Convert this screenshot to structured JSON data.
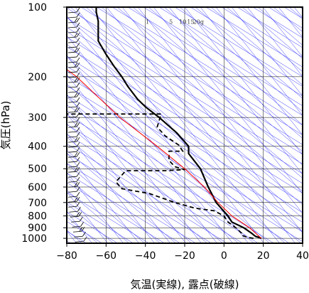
{
  "chart_data": {
    "type": "line",
    "subtype": "skew-t log-p sounding diagram",
    "xlabel": "気温(実線), 露点(破線)",
    "ylabel": "気圧(hPa)",
    "xlim": [
      -80,
      40
    ],
    "ylim": [
      1050,
      100
    ],
    "y_scale": "log",
    "grid": true,
    "x_ticks": [
      -80,
      -60,
      -40,
      -20,
      0,
      20,
      40
    ],
    "x_tick_labels": [
      "−80",
      "−60",
      "−40",
      "−20",
      "0",
      "20",
      "40"
    ],
    "y_ticks": [
      100,
      200,
      300,
      400,
      500,
      600,
      700,
      800,
      900,
      1000
    ],
    "y_tick_labels": [
      "100",
      "200",
      "300",
      "400",
      "500",
      "600",
      "700",
      "800",
      "900",
      "1000"
    ],
    "mixing_ratio_labels": [
      "1",
      "5",
      "10",
      "15",
      "20g"
    ],
    "colors": {
      "temperature": "#000000",
      "dewpoint": "#000000",
      "parcel": "#ff0000",
      "background_lines": "#3333ff",
      "grid": "#000000"
    },
    "series": [
      {
        "id": "temperature",
        "style": "solid",
        "points": [
          [
            19,
            1000
          ],
          [
            16,
            980
          ],
          [
            14,
            950
          ],
          [
            10,
            900
          ],
          [
            4,
            850
          ],
          [
            2,
            800
          ],
          [
            -4,
            700
          ],
          [
            -8,
            600
          ],
          [
            -12,
            500
          ],
          [
            -18,
            430
          ],
          [
            -18,
            400
          ],
          [
            -24,
            350
          ],
          [
            -33,
            300
          ],
          [
            -40,
            270
          ],
          [
            -44,
            250
          ],
          [
            -49,
            220
          ],
          [
            -52,
            200
          ],
          [
            -56,
            180
          ],
          [
            -60,
            160
          ],
          [
            -64,
            140
          ],
          [
            -64,
            125
          ],
          [
            -64,
            115
          ],
          [
            -65,
            105
          ],
          [
            -65,
            100
          ]
        ]
      },
      {
        "id": "dewpoint",
        "style": "dashed",
        "points": [
          [
            15,
            1000
          ],
          [
            12,
            990
          ],
          [
            9,
            970
          ],
          [
            9,
            950
          ],
          [
            6,
            900
          ],
          [
            2,
            850
          ],
          [
            0,
            800
          ],
          [
            -5,
            760
          ],
          [
            -15,
            740
          ],
          [
            -25,
            700
          ],
          [
            -38,
            640
          ],
          [
            -52,
            610
          ],
          [
            -55,
            570
          ],
          [
            -50,
            510
          ],
          [
            -30,
            510
          ],
          [
            -20,
            505
          ],
          [
            -25,
            490
          ],
          [
            -28,
            460
          ],
          [
            -28,
            420
          ],
          [
            -21,
            420
          ],
          [
            -23,
            395
          ],
          [
            -30,
            360
          ],
          [
            -34,
            330
          ],
          [
            -32,
            290
          ],
          [
            -80,
            290
          ]
        ]
      },
      {
        "id": "parcel",
        "style": "solid-red",
        "points": [
          [
            19,
            1000
          ],
          [
            13,
            900
          ],
          [
            4,
            800
          ],
          [
            -3,
            700
          ],
          [
            -10,
            600
          ],
          [
            -20,
            500
          ],
          [
            -34,
            400
          ],
          [
            -53,
            300
          ],
          [
            -75,
            200
          ],
          [
            -80,
            186
          ]
        ]
      }
    ],
    "wind_barbs_present": true
  }
}
